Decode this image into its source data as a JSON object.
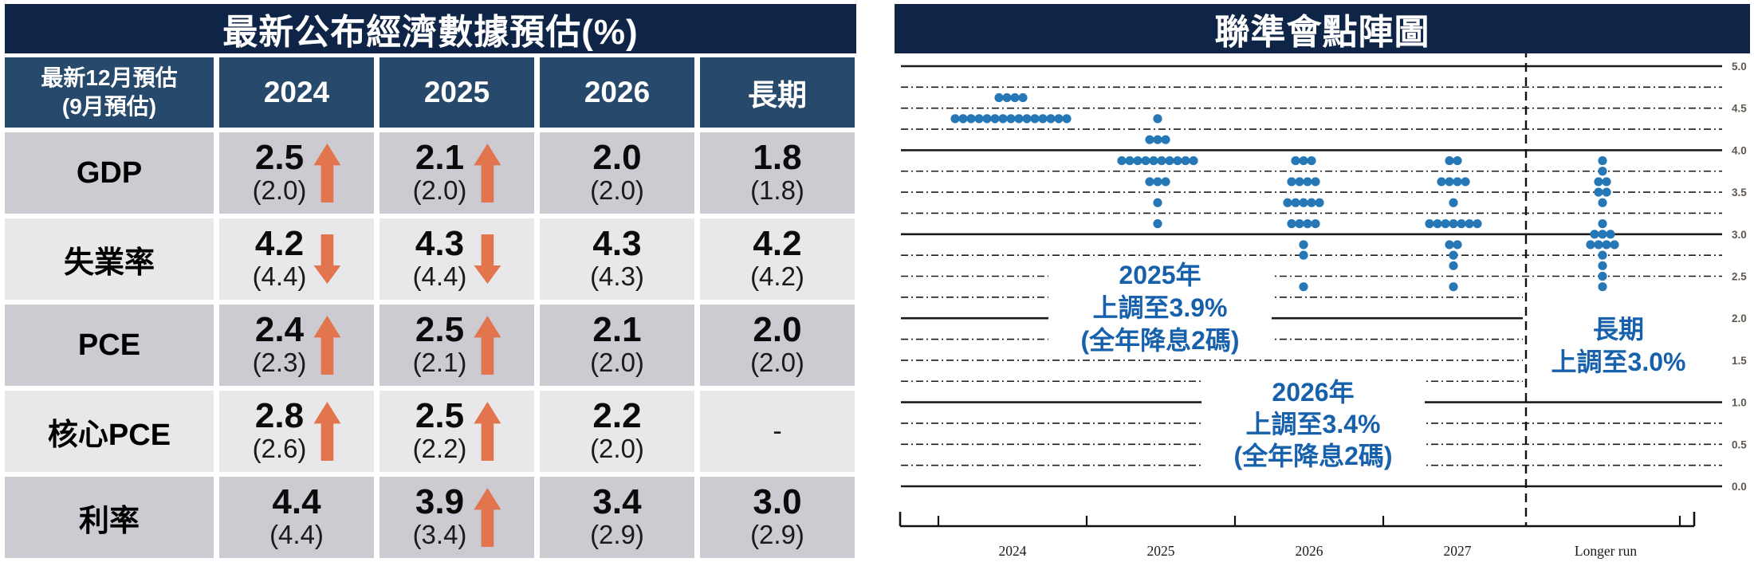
{
  "table": {
    "title": "最新公布經濟數據預估(%)",
    "header": {
      "label_line1": "最新12月預估",
      "label_line2": "(9月預估)",
      "columns": [
        "2024",
        "2025",
        "2026",
        "長期"
      ]
    },
    "rows": [
      {
        "label": "GDP",
        "cells": [
          {
            "main": "2.5",
            "sub": "(2.0)",
            "arrow": "up"
          },
          {
            "main": "2.1",
            "sub": "(2.0)",
            "arrow": "up"
          },
          {
            "main": "2.0",
            "sub": "(2.0)",
            "arrow": "none"
          },
          {
            "main": "1.8",
            "sub": "(1.8)",
            "arrow": "none"
          }
        ]
      },
      {
        "label": "失業率",
        "cells": [
          {
            "main": "4.2",
            "sub": "(4.4)",
            "arrow": "down"
          },
          {
            "main": "4.3",
            "sub": "(4.4)",
            "arrow": "down"
          },
          {
            "main": "4.3",
            "sub": "(4.3)",
            "arrow": "none"
          },
          {
            "main": "4.2",
            "sub": "(4.2)",
            "arrow": "none"
          }
        ]
      },
      {
        "label": "PCE",
        "cells": [
          {
            "main": "2.4",
            "sub": "(2.3)",
            "arrow": "up"
          },
          {
            "main": "2.5",
            "sub": "(2.1)",
            "arrow": "up"
          },
          {
            "main": "2.1",
            "sub": "(2.0)",
            "arrow": "none"
          },
          {
            "main": "2.0",
            "sub": "(2.0)",
            "arrow": "none"
          }
        ]
      },
      {
        "label": "核心PCE",
        "cells": [
          {
            "main": "2.8",
            "sub": "(2.6)",
            "arrow": "up"
          },
          {
            "main": "2.5",
            "sub": "(2.2)",
            "arrow": "up"
          },
          {
            "main": "2.2",
            "sub": "(2.0)",
            "arrow": "none"
          },
          {
            "main": "-",
            "sub": "",
            "arrow": "none"
          }
        ]
      },
      {
        "label": "利率",
        "cells": [
          {
            "main": "4.4",
            "sub": "(4.4)",
            "arrow": "none"
          },
          {
            "main": "3.9",
            "sub": "(3.4)",
            "arrow": "up"
          },
          {
            "main": "3.4",
            "sub": "(2.9)",
            "arrow": "none"
          },
          {
            "main": "3.0",
            "sub": "(2.9)",
            "arrow": "none"
          }
        ]
      }
    ]
  },
  "chart_data": {
    "type": "scatter",
    "title": "聯準會點陣圖",
    "x_categories": [
      "2024",
      "2025",
      "2026",
      "2027",
      "Longer run"
    ],
    "ylim": [
      0.0,
      5.0
    ],
    "grid_interval": 0.25,
    "yticks": [
      "5.0",
      "4.5",
      "4.0",
      "3.5",
      "3.0",
      "2.5",
      "2.0",
      "1.5",
      "1.0",
      "0.5",
      "0.0"
    ],
    "legend_position": "none",
    "grid": true,
    "series": [
      {
        "x": "2024",
        "dots": [
          {
            "rate": 4.625,
            "count": 4
          },
          {
            "rate": 4.375,
            "count": 15
          }
        ]
      },
      {
        "x": "2025",
        "dots": [
          {
            "rate": 4.375,
            "count": 1
          },
          {
            "rate": 4.125,
            "count": 3
          },
          {
            "rate": 3.875,
            "count": 10
          },
          {
            "rate": 3.625,
            "count": 3
          },
          {
            "rate": 3.375,
            "count": 1
          },
          {
            "rate": 3.125,
            "count": 1
          }
        ]
      },
      {
        "x": "2026",
        "dots": [
          {
            "rate": 3.875,
            "count": 3
          },
          {
            "rate": 3.625,
            "count": 4
          },
          {
            "rate": 3.375,
            "count": 5
          },
          {
            "rate": 3.125,
            "count": 4
          },
          {
            "rate": 2.875,
            "count": 1
          },
          {
            "rate": 2.75,
            "count": 1
          },
          {
            "rate": 2.375,
            "count": 1
          }
        ]
      },
      {
        "x": "2027",
        "dots": [
          {
            "rate": 3.875,
            "count": 2
          },
          {
            "rate": 3.625,
            "count": 4
          },
          {
            "rate": 3.375,
            "count": 1
          },
          {
            "rate": 3.125,
            "count": 7
          },
          {
            "rate": 2.875,
            "count": 2
          },
          {
            "rate": 2.75,
            "count": 1
          },
          {
            "rate": 2.625,
            "count": 1
          },
          {
            "rate": 2.375,
            "count": 1
          }
        ]
      },
      {
        "x": "Longer run",
        "dots": [
          {
            "rate": 3.875,
            "count": 1
          },
          {
            "rate": 3.75,
            "count": 1
          },
          {
            "rate": 3.625,
            "count": 2
          },
          {
            "rate": 3.5,
            "count": 2
          },
          {
            "rate": 3.375,
            "count": 1
          },
          {
            "rate": 3.125,
            "count": 1
          },
          {
            "rate": 3.0,
            "count": 3
          },
          {
            "rate": 2.875,
            "count": 4
          },
          {
            "rate": 2.75,
            "count": 1
          },
          {
            "rate": 2.625,
            "count": 1
          },
          {
            "rate": 2.5,
            "count": 1
          },
          {
            "rate": 2.375,
            "count": 1
          }
        ]
      }
    ],
    "annotations": [
      {
        "lines": [
          "2025年",
          "上調至3.9%",
          "(全年降息2碼)"
        ]
      },
      {
        "lines": [
          "2026年",
          "上調至3.4%",
          "(全年降息2碼)"
        ]
      },
      {
        "lines": [
          "長期",
          "上調至3.0%"
        ]
      }
    ]
  },
  "colors": {
    "panel_title_navy": "#0F2547",
    "table_header_navy": "#27496B",
    "row_dark": "#CBCBD1",
    "row_light": "#E8E8EB",
    "arrow_orange": "#E2744E",
    "dot_blue": "#2577B5",
    "annotation_blue": "#1761AC",
    "ytick_gray": "#5E574E"
  }
}
